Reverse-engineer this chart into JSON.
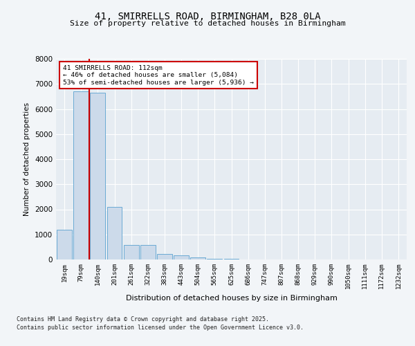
{
  "title_line1": "41, SMIRRELLS ROAD, BIRMINGHAM, B28 0LA",
  "title_line2": "Size of property relative to detached houses in Birmingham",
  "xlabel": "Distribution of detached houses by size in Birmingham",
  "ylabel": "Number of detached properties",
  "footer_line1": "Contains HM Land Registry data © Crown copyright and database right 2025.",
  "footer_line2": "Contains public sector information licensed under the Open Government Licence v3.0.",
  "annotation_line1": "41 SMIRRELLS ROAD: 112sqm",
  "annotation_line2": "← 46% of detached houses are smaller (5,084)",
  "annotation_line3": "53% of semi-detached houses are larger (5,936) →",
  "bar_color": "#ccdaea",
  "bar_edge_color": "#6aaad4",
  "vline_color": "#cc0000",
  "categories": [
    "19sqm",
    "79sqm",
    "140sqm",
    "201sqm",
    "261sqm",
    "322sqm",
    "383sqm",
    "443sqm",
    "504sqm",
    "565sqm",
    "625sqm",
    "686sqm",
    "747sqm",
    "807sqm",
    "868sqm",
    "929sqm",
    "990sqm",
    "1050sqm",
    "1111sqm",
    "1172sqm",
    "1232sqm"
  ],
  "values": [
    1200,
    6700,
    6650,
    2100,
    580,
    580,
    220,
    155,
    80,
    40,
    15,
    5,
    2,
    1,
    0,
    0,
    0,
    0,
    0,
    0,
    0
  ],
  "ylim": [
    0,
    8000
  ],
  "yticks": [
    0,
    1000,
    2000,
    3000,
    4000,
    5000,
    6000,
    7000,
    8000
  ],
  "bg_color": "#f2f5f8",
  "plot_bg_color": "#e6ecf2"
}
